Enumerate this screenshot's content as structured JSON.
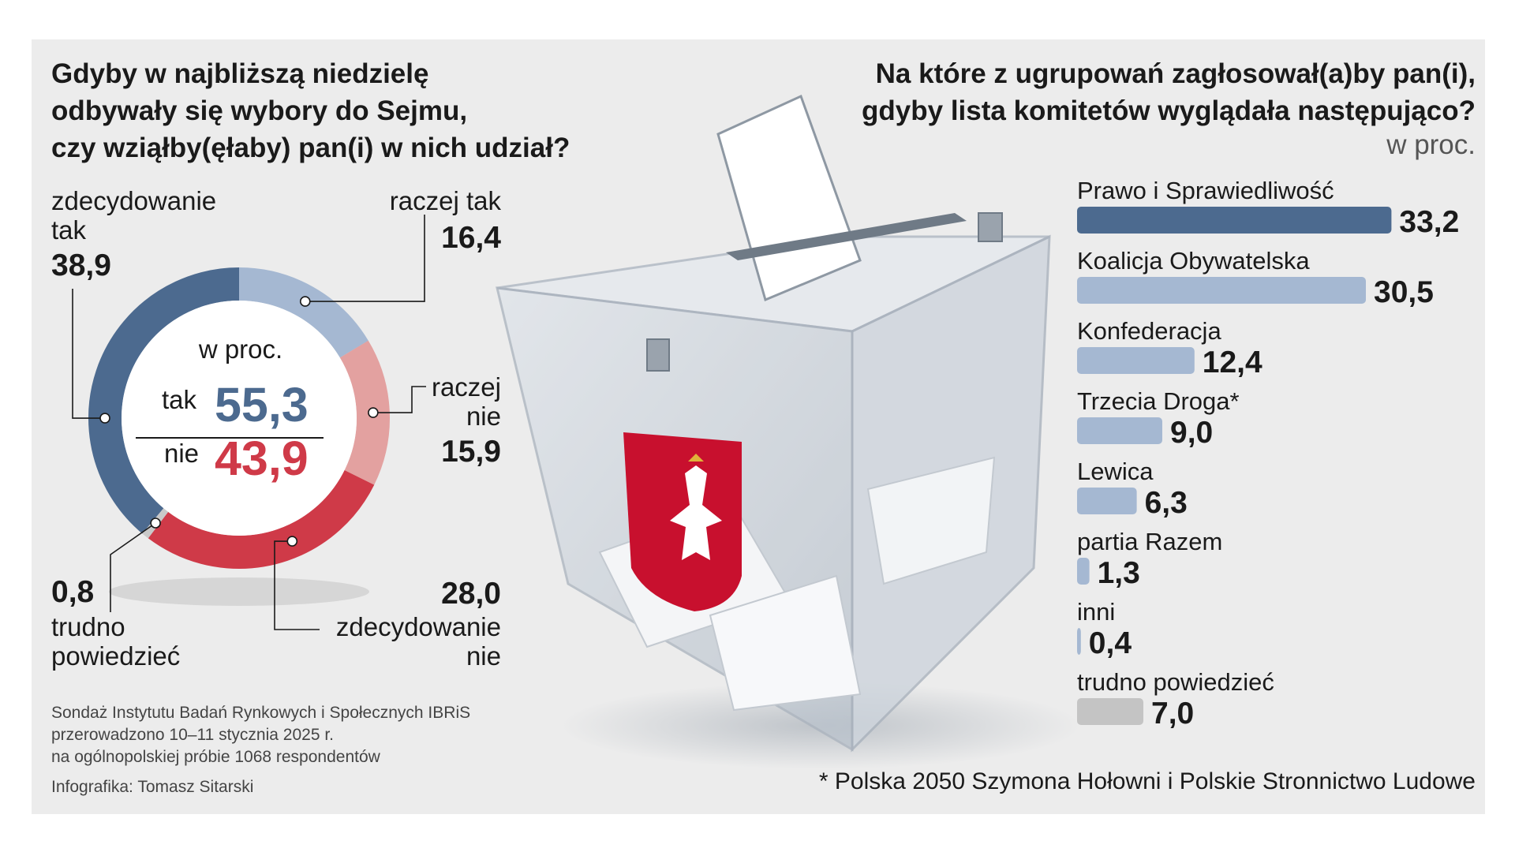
{
  "left": {
    "title_lines": [
      "Gdyby w najbliższą niedzielę",
      "odbywały się wybory do Sejmu,",
      "czy wziąłby(ęłaby) pan(i) w nich udział?"
    ],
    "unit": "w proc.",
    "totals": {
      "yes_label": "tak",
      "yes_value": "55,3",
      "no_label": "nie",
      "no_value": "43,9"
    },
    "labels": {
      "def_yes": [
        "zdecydowanie",
        "tak"
      ],
      "def_yes_value": "38,9",
      "rather_yes": "raczej tak",
      "rather_yes_value": "16,4",
      "rather_no": [
        "raczej",
        "nie"
      ],
      "rather_no_value": "15,9",
      "def_no": [
        "zdecydowanie",
        "nie"
      ],
      "def_no_value": "28,0",
      "dont_know": [
        "trudno",
        "powiedzieć"
      ],
      "dont_know_value": "0,8"
    },
    "source_lines": [
      "Sondaż Instytutu Badań Rynkowych i Społecznych IBRiS",
      "przerowadzono 10–11 stycznia 2025 r.",
      "na ogólnopolskiej próbie 1068 respondentów"
    ],
    "credit": "Infografika: Tomasz Sitarski"
  },
  "right": {
    "title_lines": [
      "Na które z ugrupowań zagłosował(a)by pan(i),",
      "gdyby lista komitetów wyglądała następująco?"
    ],
    "unit": "w proc.",
    "footnote": "* Polska 2050 Szymona Hołowni i Polskie Stronnictwo Ludowe"
  },
  "colors": {
    "def_yes": "#4c6a8f",
    "rather_yes": "#a5b8d2",
    "rather_no": "#e3a1a0",
    "def_no": "#cf3a48",
    "dont_know": "#c9c9c9",
    "bar_first": "#4c6a8f",
    "bar_other": "#a5b8d2",
    "bar_undecided": "#c4c4c4",
    "yes_text": "#4c6a8f",
    "no_text": "#cf3a48",
    "panel": "#ececec"
  },
  "chart_data": [
    {
      "type": "pie",
      "title": "Gdyby w najbliższą niedzielę odbywały się wybory do Sejmu, czy wziąłby(ęłaby) pan(i) w nich udział?",
      "unit": "w proc.",
      "categories": [
        "zdecydowanie tak",
        "raczej tak",
        "raczej nie",
        "zdecydowanie nie",
        "trudno powiedzieć"
      ],
      "values": [
        38.9,
        16.4,
        15.9,
        28.0,
        0.8
      ],
      "value_labels": [
        "38,9",
        "16,4",
        "15,9",
        "28,0",
        "0,8"
      ]
    },
    {
      "type": "bar",
      "orientation": "horizontal",
      "title": "Na które z ugrupowań zagłosował(a)by pan(i), gdyby lista komitetów wyglądała następująco?",
      "unit": "w proc.",
      "categories": [
        "Prawo i Sprawiedliwość",
        "Koalicja Obywatelska",
        "Konfederacja",
        "Trzecia Droga*",
        "Lewica",
        "partia Razem",
        "inni",
        "trudno powiedzieć"
      ],
      "values": [
        33.2,
        30.5,
        12.4,
        9.0,
        6.3,
        1.3,
        0.4,
        7.0
      ],
      "value_labels": [
        "33,2",
        "30,5",
        "12,4",
        "9,0",
        "6,3",
        "1,3",
        "0,4",
        "7,0"
      ]
    }
  ]
}
